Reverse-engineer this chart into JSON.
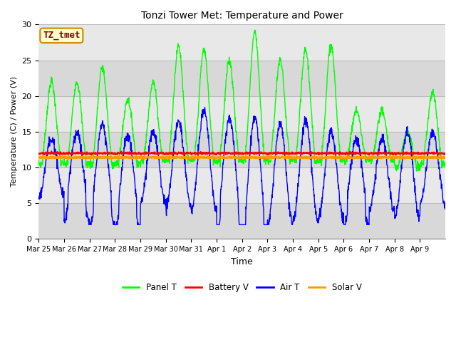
{
  "title": "Tonzi Tower Met: Temperature and Power",
  "xlabel": "Time",
  "ylabel": "Temperature (C) / Power (V)",
  "ylim": [
    0,
    30
  ],
  "yticks": [
    0,
    5,
    10,
    15,
    20,
    25,
    30
  ],
  "fig_bg_color": "#ffffff",
  "plot_bg_color": "#d8d8d8",
  "annotation_text": "TZ_tmet",
  "annotation_bg": "#ffffcc",
  "annotation_border": "#cc8800",
  "annotation_text_color": "#880000",
  "legend_entries": [
    "Panel T",
    "Battery V",
    "Air T",
    "Solar V"
  ],
  "line_colors": {
    "panel_t": "#00ff00",
    "battery_v": "#ff0000",
    "air_t": "#0000ff",
    "solar_v": "#ff9900"
  },
  "line_widths": {
    "panel_t": 1.0,
    "battery_v": 1.5,
    "air_t": 1.0,
    "solar_v": 2.0
  },
  "num_days": 16,
  "points_per_day": 96,
  "x_tick_labels": [
    "Mar 25",
    "Mar 26",
    "Mar 27",
    "Mar 28",
    "Mar 29",
    "Mar 30",
    "Mar 31",
    "Apr 1",
    "Apr 2",
    "Apr 3",
    "Apr 4",
    "Apr 5",
    "Apr 6",
    "Apr 7",
    "Apr 8",
    "Apr 9"
  ],
  "grid_color": "#c0c0c0",
  "grid_alpha": 1.0,
  "band_colors": [
    "#d8d8d8",
    "#e8e8e8"
  ]
}
